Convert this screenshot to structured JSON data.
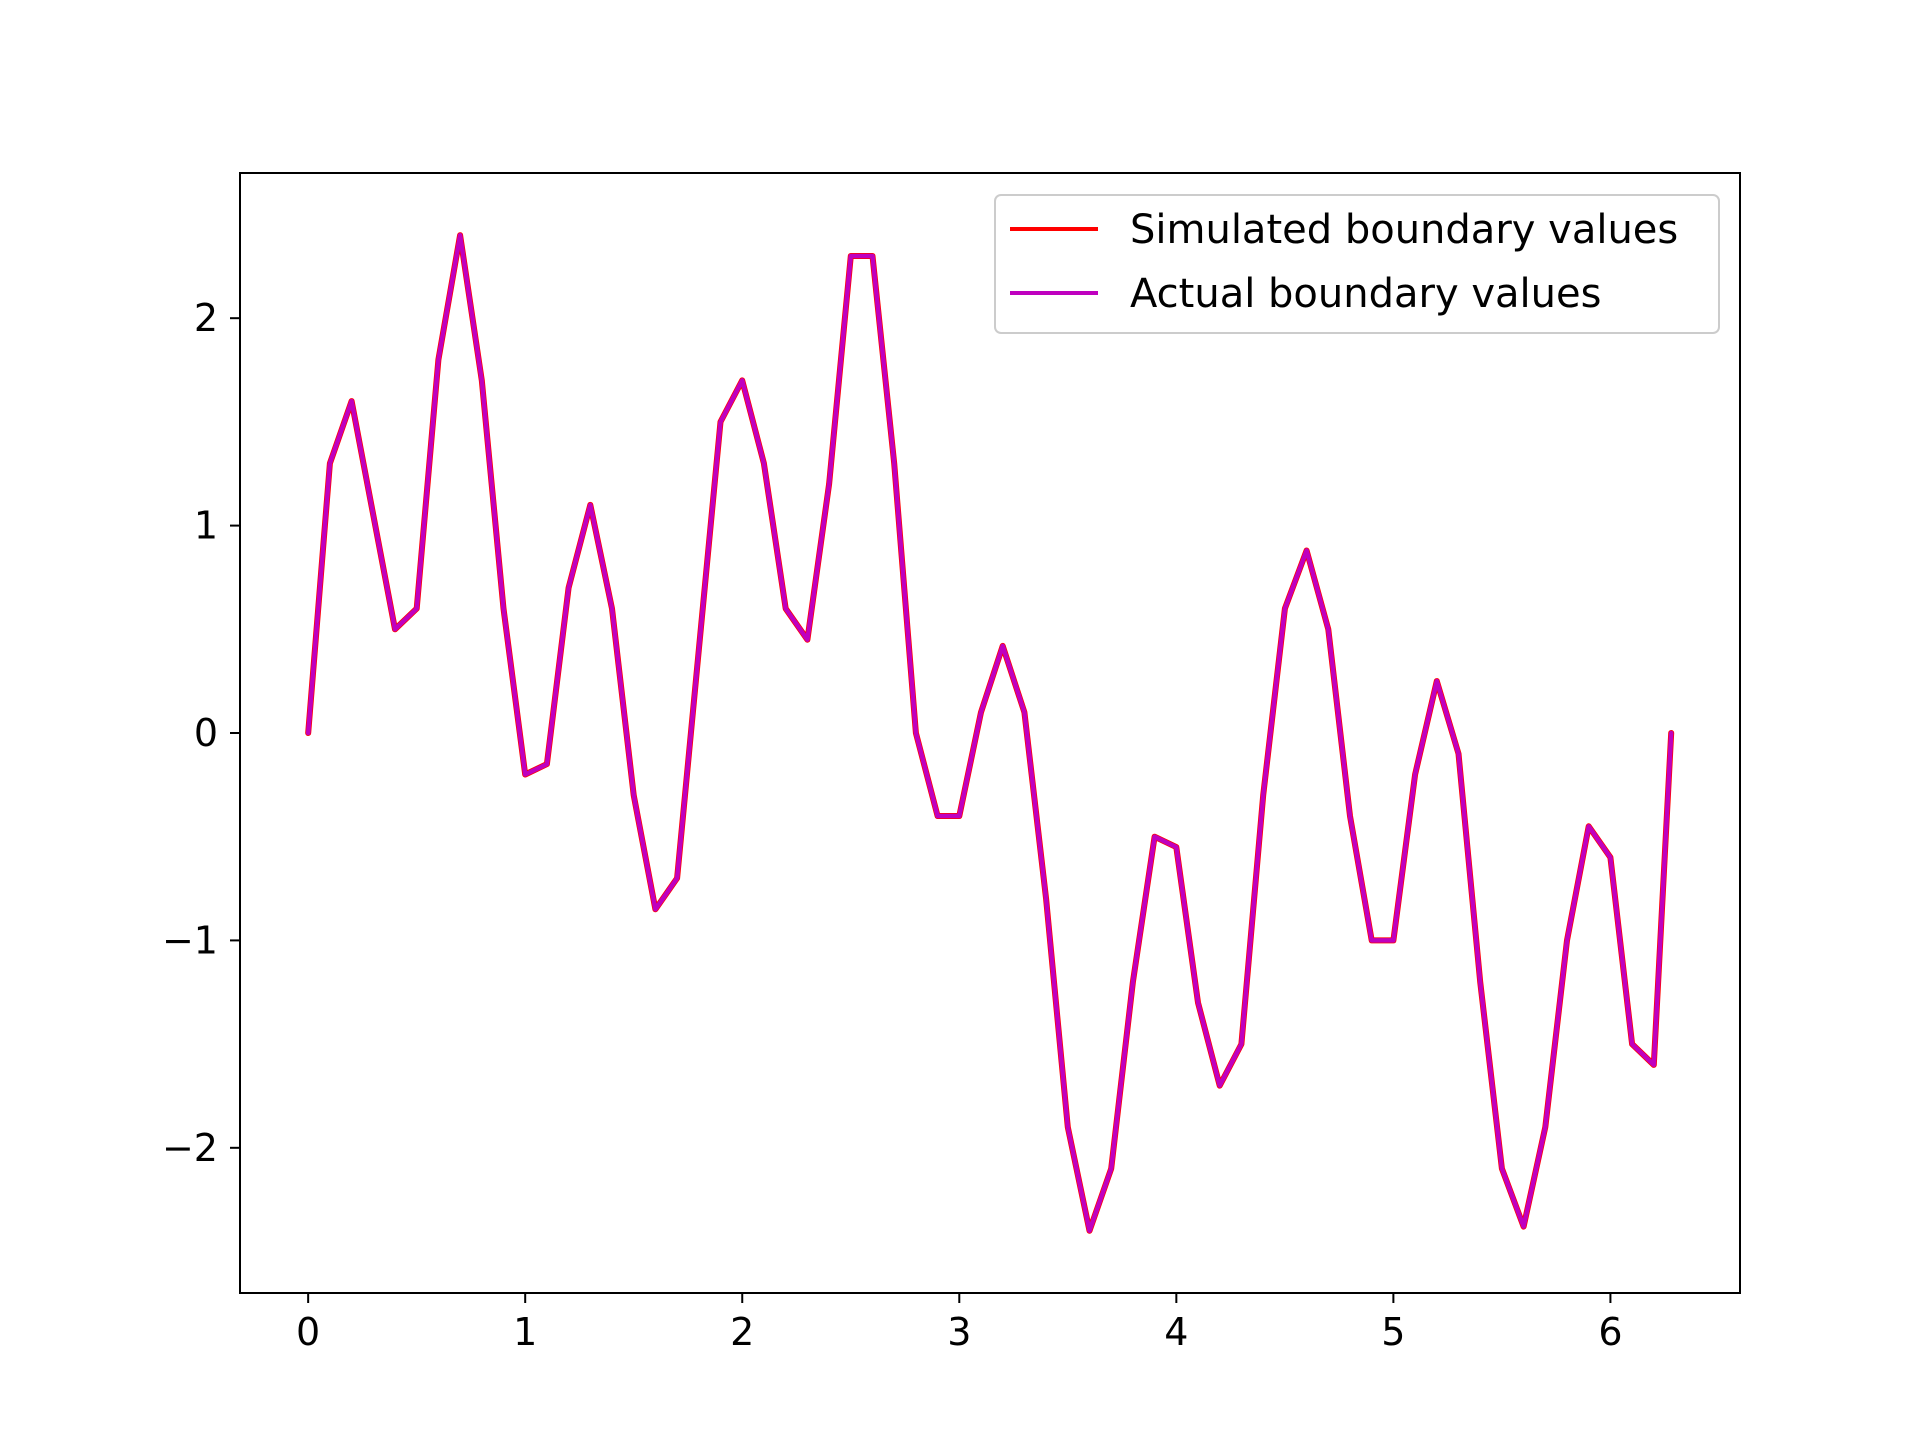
{
  "chart_data": {
    "type": "line",
    "title": "",
    "xlabel": "",
    "ylabel": "",
    "xlim": [
      -0.314,
      6.597
    ],
    "ylim": [
      -2.7,
      2.7
    ],
    "xticks": [
      0,
      1,
      2,
      3,
      4,
      5,
      6
    ],
    "xtick_labels": [
      "0",
      "1",
      "2",
      "3",
      "4",
      "5",
      "6"
    ],
    "yticks": [
      -2,
      -1,
      0,
      1,
      2
    ],
    "ytick_labels": [
      "−2",
      "−1",
      "0",
      "1",
      "2"
    ],
    "grid": false,
    "legend_position": "top-right",
    "series": [
      {
        "name": "Simulated boundary values",
        "color": "#ff0000",
        "x": [
          0.0,
          0.1,
          0.2,
          0.3,
          0.4,
          0.5,
          0.6,
          0.7,
          0.8,
          0.9,
          1.0,
          1.1,
          1.2,
          1.3,
          1.4,
          1.5,
          1.6,
          1.7,
          1.8,
          1.9,
          2.0,
          2.1,
          2.2,
          2.3,
          2.4,
          2.5,
          2.6,
          2.7,
          2.8,
          2.9,
          3.0,
          3.1,
          3.2,
          3.3,
          3.4,
          3.5,
          3.6,
          3.7,
          3.8,
          3.9,
          4.0,
          4.1,
          4.2,
          4.3,
          4.4,
          4.5,
          4.6,
          4.7,
          4.8,
          4.9,
          5.0,
          5.1,
          5.2,
          5.3,
          5.4,
          5.5,
          5.6,
          5.7,
          5.8,
          5.9,
          6.0,
          6.1,
          6.2,
          6.28
        ],
        "y": [
          0.0,
          1.3,
          1.6,
          1.05,
          0.5,
          0.6,
          1.8,
          2.4,
          1.7,
          0.6,
          -0.2,
          -0.15,
          0.7,
          1.1,
          0.6,
          -0.3,
          -0.85,
          -0.7,
          0.4,
          1.5,
          1.7,
          1.3,
          0.6,
          0.45,
          1.2,
          2.3,
          2.3,
          1.3,
          0.0,
          -0.4,
          -0.4,
          0.1,
          0.42,
          0.1,
          -0.8,
          -1.9,
          -2.4,
          -2.1,
          -1.2,
          -0.5,
          -0.55,
          -1.3,
          -1.7,
          -1.5,
          -0.3,
          0.6,
          0.88,
          0.5,
          -0.4,
          -1.0,
          -1.0,
          -0.2,
          0.25,
          -0.1,
          -1.2,
          -2.1,
          -2.38,
          -1.9,
          -1.0,
          -0.45,
          -0.6,
          -1.5,
          -1.6,
          0.0
        ]
      },
      {
        "name": "Actual boundary values",
        "color": "#bf00bf",
        "x": [
          0.0,
          0.1,
          0.2,
          0.3,
          0.4,
          0.5,
          0.6,
          0.7,
          0.8,
          0.9,
          1.0,
          1.1,
          1.2,
          1.3,
          1.4,
          1.5,
          1.6,
          1.7,
          1.8,
          1.9,
          2.0,
          2.1,
          2.2,
          2.3,
          2.4,
          2.5,
          2.6,
          2.7,
          2.8,
          2.9,
          3.0,
          3.1,
          3.2,
          3.3,
          3.4,
          3.5,
          3.6,
          3.7,
          3.8,
          3.9,
          4.0,
          4.1,
          4.2,
          4.3,
          4.4,
          4.5,
          4.6,
          4.7,
          4.8,
          4.9,
          5.0,
          5.1,
          5.2,
          5.3,
          5.4,
          5.5,
          5.6,
          5.7,
          5.8,
          5.9,
          6.0,
          6.1,
          6.2,
          6.28
        ],
        "y": [
          0.0,
          1.3,
          1.6,
          1.05,
          0.5,
          0.6,
          1.8,
          2.4,
          1.7,
          0.6,
          -0.2,
          -0.15,
          0.7,
          1.1,
          0.6,
          -0.3,
          -0.85,
          -0.7,
          0.4,
          1.5,
          1.7,
          1.3,
          0.6,
          0.45,
          1.2,
          2.3,
          2.3,
          1.3,
          0.0,
          -0.4,
          -0.4,
          0.1,
          0.42,
          0.1,
          -0.8,
          -1.9,
          -2.4,
          -2.1,
          -1.2,
          -0.5,
          -0.55,
          -1.3,
          -1.7,
          -1.5,
          -0.3,
          0.6,
          0.88,
          0.5,
          -0.4,
          -1.0,
          -1.0,
          -0.2,
          0.25,
          -0.1,
          -1.2,
          -2.1,
          -2.38,
          -1.9,
          -1.0,
          -0.45,
          -0.6,
          -1.5,
          -1.6,
          0.0
        ]
      }
    ]
  }
}
